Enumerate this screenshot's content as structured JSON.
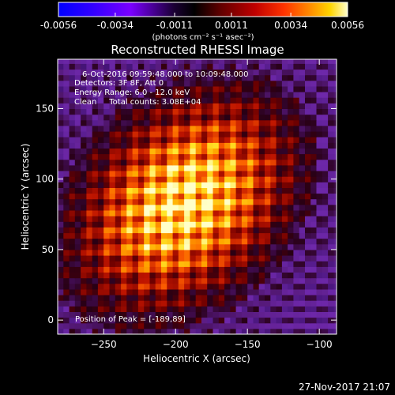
{
  "plot": {
    "title": "Reconstructed RHESSI Image",
    "info_lines": [
      "6-Oct-2016 09:59:48.000 to 10:09:48.000",
      "Detectors: 3F 8F, Att 0",
      "Energy Range: 6.0 - 12.0 keV",
      "Clean     Total counts: 3.08E+04"
    ],
    "peak_text": "Position of Peak = [-189,89]",
    "footer_date": "27-Nov-2017 21:07"
  },
  "colorbar": {
    "tick_labels": [
      "-0.0056",
      "-0.0034",
      "-0.0011",
      "0.0011",
      "0.0034",
      "0.0056"
    ],
    "tick_values": [
      -0.0056,
      -0.0034,
      -0.0011,
      0.0011,
      0.0034,
      0.0056
    ],
    "range": [
      -0.0056,
      0.0056
    ],
    "units": "(photons cm⁻² s⁻¹ asec⁻²)",
    "colors": [
      "#0000ff",
      "#2a00ff",
      "#8800ff",
      "#000000",
      "#5a0000",
      "#b00000",
      "#ff3300",
      "#ff8800",
      "#ffcc00",
      "#ffff66",
      "#ffffff"
    ]
  },
  "chart_data": {
    "type": "heatmap",
    "title": "Reconstructed RHESSI Image",
    "xlabel": "Heliocentric X (arcsec)",
    "ylabel": "Heliocentric Y (arcsec)",
    "xlim": [
      -282,
      -88
    ],
    "ylim": [
      -10,
      185
    ],
    "xticks": [
      -250,
      -200,
      -150,
      -100
    ],
    "yticks": [
      0,
      50,
      100,
      150
    ],
    "peak": [
      -189,
      89
    ],
    "value_range": [
      -0.0056,
      0.0056
    ],
    "grid": false
  }
}
